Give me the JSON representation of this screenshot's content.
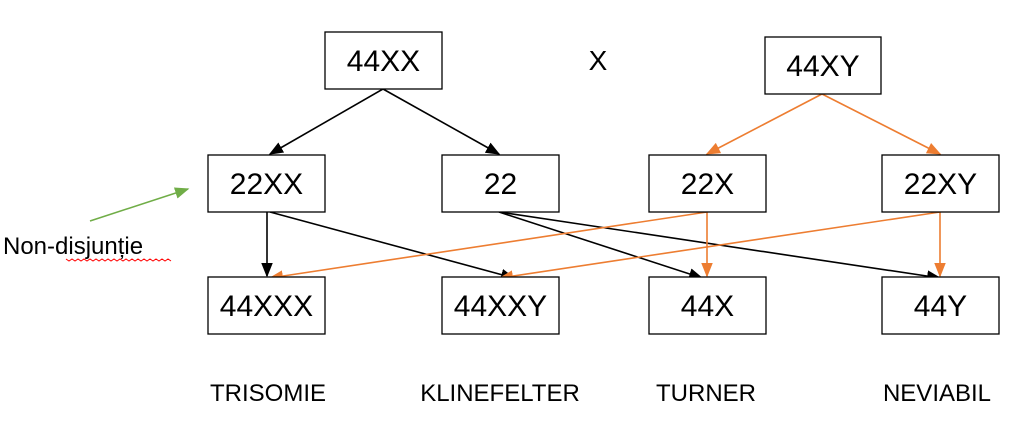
{
  "colors": {
    "black_arrow": "#000000",
    "orange_arrow": "#ed7d31",
    "green_arrow": "#70ad47",
    "spellcheck_underline": "#ff0000"
  },
  "parents": {
    "mother": "44XX",
    "cross_symbol": "X",
    "father": "44XY"
  },
  "gametes": {
    "g22xx": "22XX",
    "g22": "22",
    "g22x": "22X",
    "g22xy": "22XY"
  },
  "zygotes": {
    "z44xxx": "44XXX",
    "z44xxy": "44XXY",
    "z44x": "44X",
    "z44y": "44Y"
  },
  "syndromes": {
    "trisomie": "TRISOMIE",
    "klinefelter": "KLINEFELTER",
    "turner": "TURNER",
    "neviabil": "NEVIABIL"
  },
  "annotation": {
    "text": "Non-disjunție"
  }
}
